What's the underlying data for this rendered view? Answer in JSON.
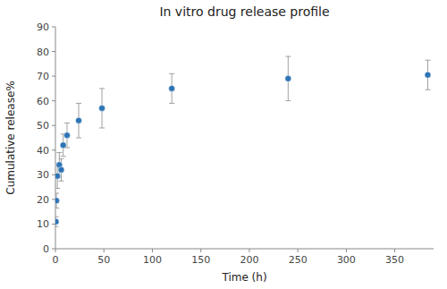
{
  "chart_data": {
    "type": "scatter",
    "title": "In vitro drug release profile",
    "x_label": "Time (h)",
    "y_label": "Cumulative release%",
    "x": [
      0.5,
      1,
      2,
      4,
      6,
      8,
      12,
      24,
      48,
      120,
      240,
      384
    ],
    "values": [
      11,
      19.5,
      29.5,
      34,
      32,
      42,
      46,
      52,
      57,
      65,
      69,
      70.5
    ],
    "errors": [
      2.0,
      3.0,
      5.0,
      5.0,
      4.5,
      4.5,
      5.0,
      7.0,
      8.0,
      6.0,
      9.0,
      6.0
    ],
    "color": "#2E74B5",
    "xlim": [
      0,
      390
    ],
    "ylim": [
      0,
      90
    ],
    "xticks": [
      0,
      50,
      100,
      150,
      200,
      250,
      300,
      350
    ],
    "yticks": [
      0,
      10,
      20,
      30,
      40,
      50,
      60,
      70,
      80,
      90
    ]
  }
}
